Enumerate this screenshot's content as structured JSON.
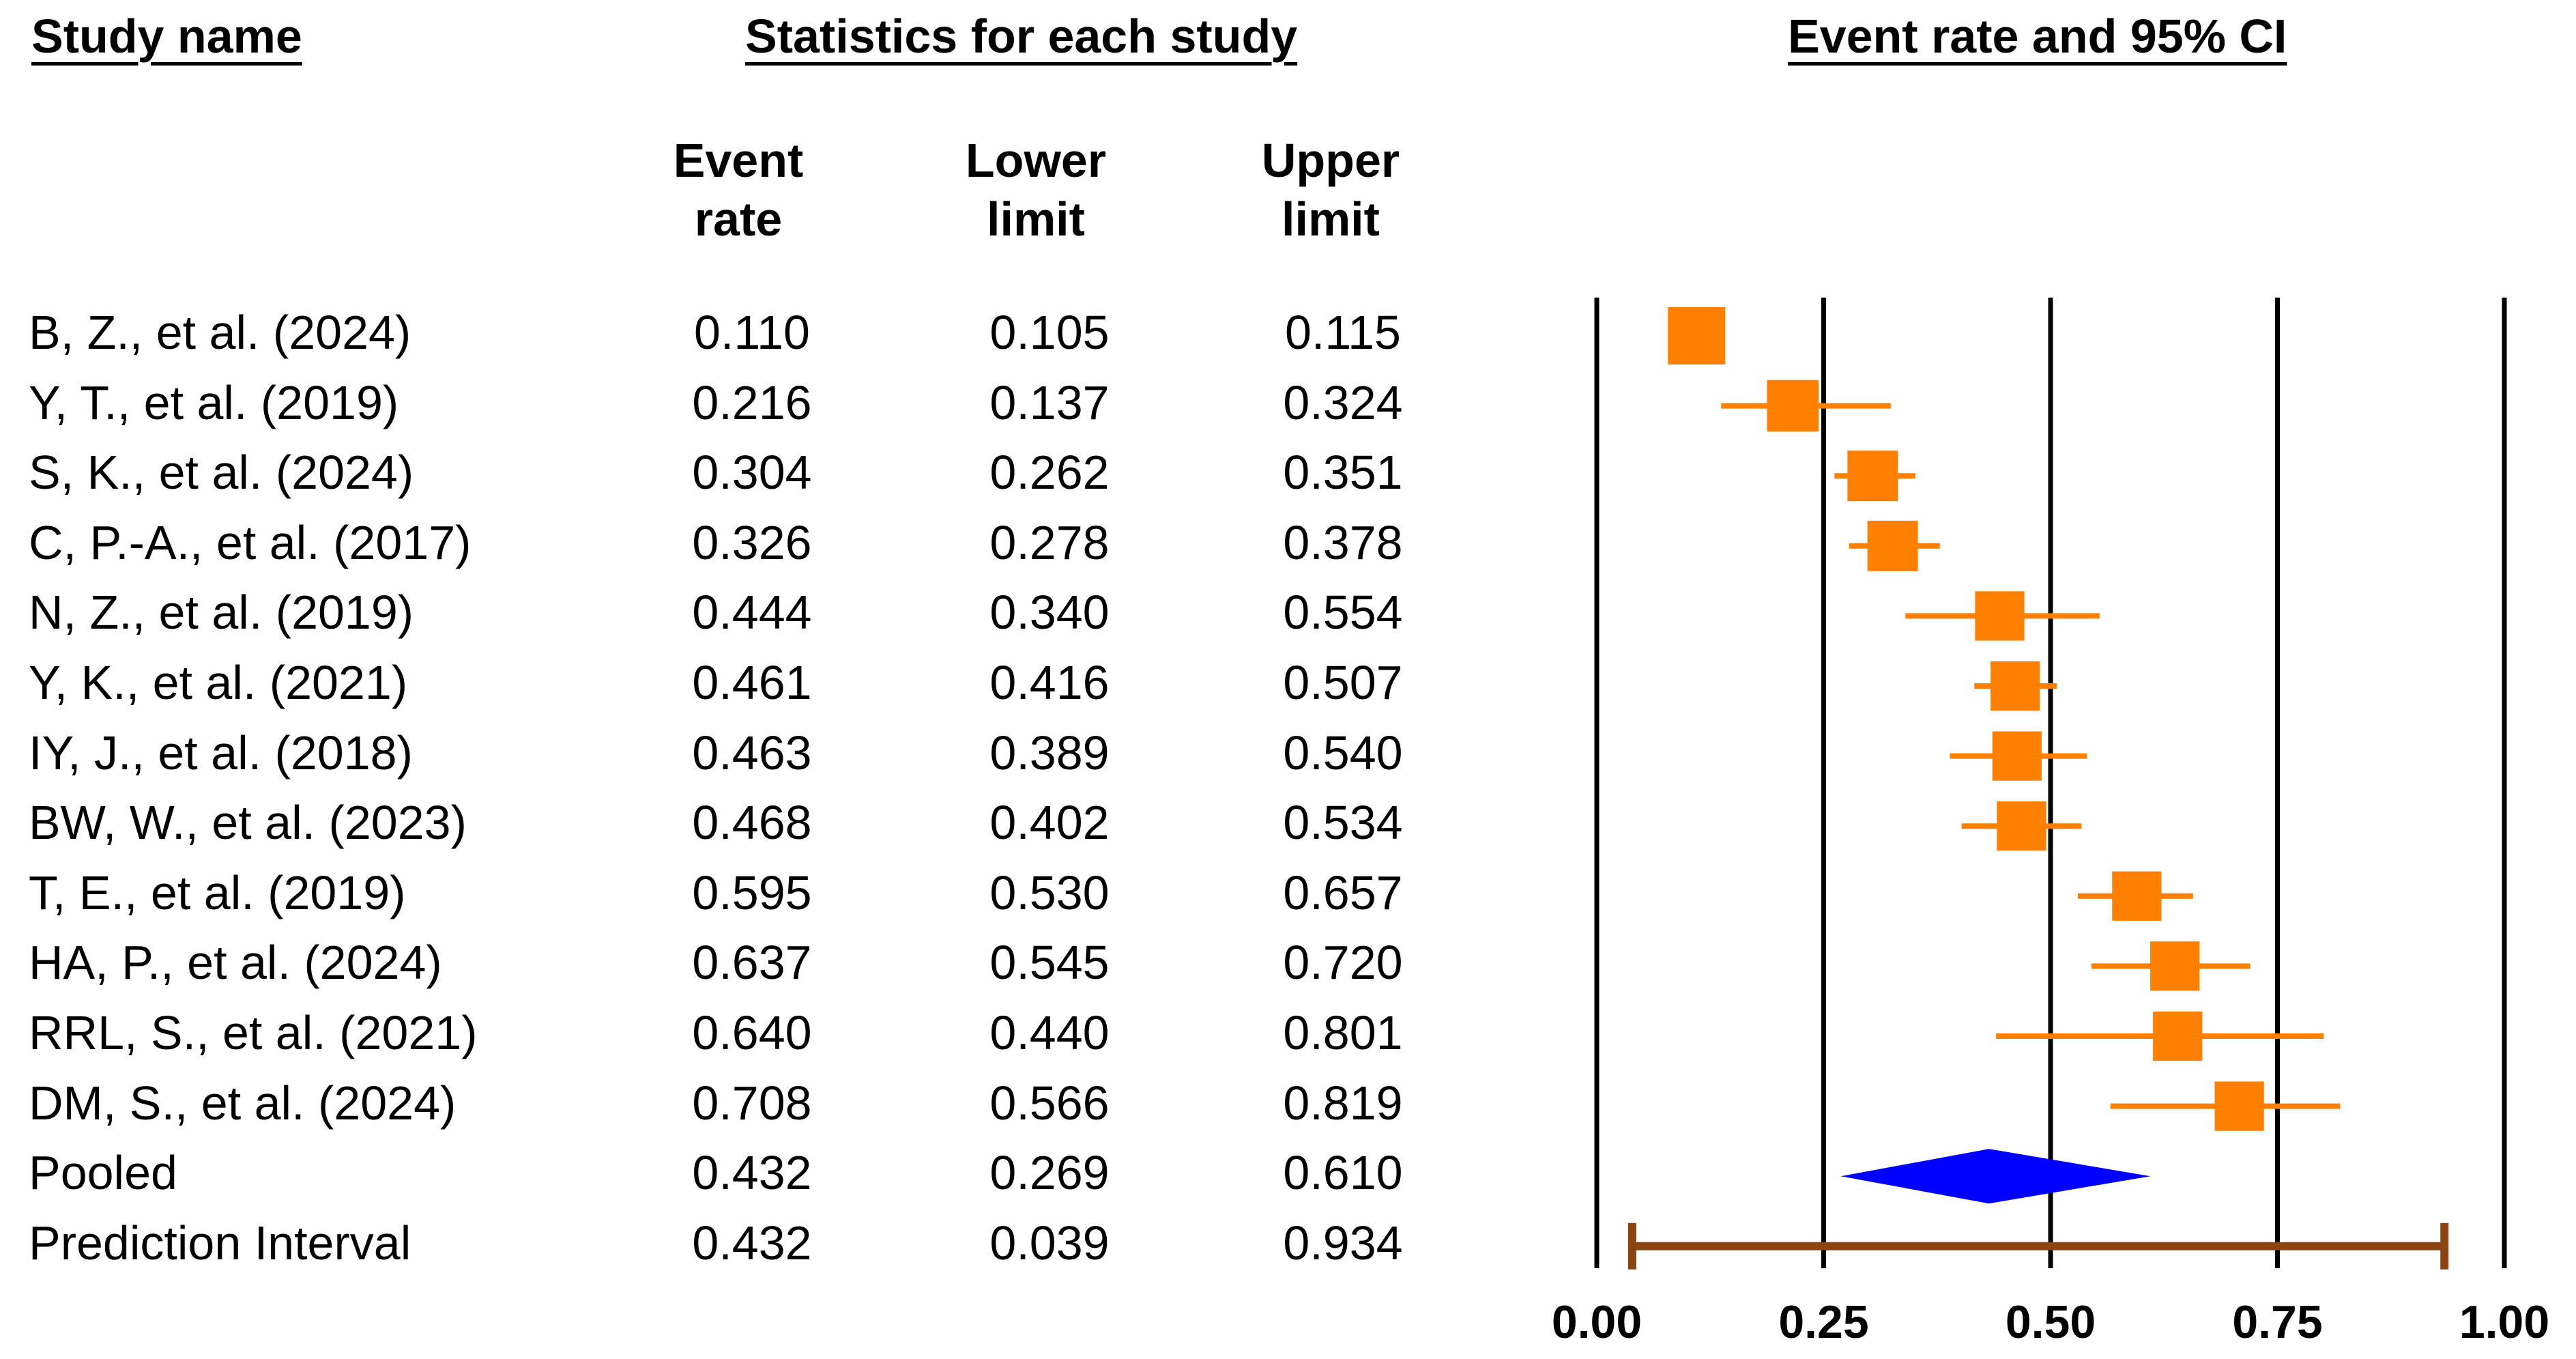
{
  "headers": {
    "study_name": "Study name",
    "statistics": "Statistics for each study",
    "plot_title": "Event rate and 95% CI",
    "event_rate": [
      "Event",
      "rate"
    ],
    "lower_limit": [
      "Lower",
      "limit"
    ],
    "upper_limit": [
      "Upper",
      "limit"
    ]
  },
  "rows": [
    {
      "name": "B, Z., et al. (2024)",
      "rate": "0.110",
      "lower": "0.105",
      "upper": "0.115"
    },
    {
      "name": "Y, T., et al. (2019)",
      "rate": "0.216",
      "lower": "0.137",
      "upper": "0.324"
    },
    {
      "name": "S, K., et al. (2024)",
      "rate": "0.304",
      "lower": "0.262",
      "upper": "0.351"
    },
    {
      "name": "C, P.-A., et al. (2017)",
      "rate": "0.326",
      "lower": "0.278",
      "upper": "0.378"
    },
    {
      "name": "N, Z., et al. (2019)",
      "rate": "0.444",
      "lower": "0.340",
      "upper": "0.554"
    },
    {
      "name": "Y, K., et al. (2021)",
      "rate": "0.461",
      "lower": "0.416",
      "upper": "0.507"
    },
    {
      "name": "IY, J., et al. (2018)",
      "rate": "0.463",
      "lower": "0.389",
      "upper": "0.540"
    },
    {
      "name": "BW, W., et al. (2023)",
      "rate": "0.468",
      "lower": "0.402",
      "upper": "0.534"
    },
    {
      "name": "T, E., et al. (2019)",
      "rate": "0.595",
      "lower": "0.530",
      "upper": "0.657"
    },
    {
      "name": "HA, P., et al. (2024)",
      "rate": "0.637",
      "lower": "0.545",
      "upper": "0.720"
    },
    {
      "name": "RRL, S., et al. (2021)",
      "rate": "0.640",
      "lower": "0.440",
      "upper": "0.801"
    },
    {
      "name": "DM, S., et al. (2024)",
      "rate": "0.708",
      "lower": "0.566",
      "upper": "0.819"
    },
    {
      "name": "Pooled",
      "rate": "0.432",
      "lower": "0.269",
      "upper": "0.610"
    },
    {
      "name": "Prediction Interval",
      "rate": "0.432",
      "lower": "0.039",
      "upper": "0.934"
    }
  ],
  "chart_data": {
    "type": "forest",
    "title": "Event rate and 95% CI",
    "xlim": [
      0,
      1
    ],
    "xticks": [
      "0.00",
      "0.25",
      "0.50",
      "0.75",
      "1.00"
    ],
    "gridlines": [
      0,
      0.25,
      0.5,
      0.75,
      1
    ],
    "studies": [
      {
        "name": "B, Z., et al. (2024)",
        "rate": 0.11,
        "lower": 0.105,
        "upper": 0.115,
        "weight": 1.0
      },
      {
        "name": "Y, T., et al. (2019)",
        "rate": 0.216,
        "lower": 0.137,
        "upper": 0.324,
        "weight": 0.9
      },
      {
        "name": "S, K., et al. (2024)",
        "rate": 0.304,
        "lower": 0.262,
        "upper": 0.351,
        "weight": 0.88
      },
      {
        "name": "C, P.-A., et al. (2017)",
        "rate": 0.326,
        "lower": 0.278,
        "upper": 0.378,
        "weight": 0.88
      },
      {
        "name": "N, Z., et al. (2019)",
        "rate": 0.444,
        "lower": 0.34,
        "upper": 0.554,
        "weight": 0.86
      },
      {
        "name": "Y, K., et al. (2021)",
        "rate": 0.461,
        "lower": 0.416,
        "upper": 0.507,
        "weight": 0.86
      },
      {
        "name": "IY, J., et al. (2018)",
        "rate": 0.463,
        "lower": 0.389,
        "upper": 0.54,
        "weight": 0.86
      },
      {
        "name": "BW, W., et al. (2023)",
        "rate": 0.468,
        "lower": 0.402,
        "upper": 0.534,
        "weight": 0.86
      },
      {
        "name": "T, E., et al. (2019)",
        "rate": 0.595,
        "lower": 0.53,
        "upper": 0.657,
        "weight": 0.86
      },
      {
        "name": "HA, P., et al. (2024)",
        "rate": 0.637,
        "lower": 0.545,
        "upper": 0.72,
        "weight": 0.86
      },
      {
        "name": "RRL, S., et al. (2021)",
        "rate": 0.64,
        "lower": 0.44,
        "upper": 0.801,
        "weight": 0.86
      },
      {
        "name": "DM, S., et al. (2024)",
        "rate": 0.708,
        "lower": 0.566,
        "upper": 0.819,
        "weight": 0.86
      }
    ],
    "pooled": {
      "name": "Pooled",
      "rate": 0.432,
      "lower": 0.269,
      "upper": 0.61
    },
    "prediction_interval": {
      "name": "Prediction Interval",
      "rate": 0.432,
      "lower": 0.039,
      "upper": 0.934
    },
    "colors": {
      "study": "#FF8000",
      "pooled": "#0000FF",
      "prediction": "#8B4513",
      "grid": "#000000"
    }
  }
}
